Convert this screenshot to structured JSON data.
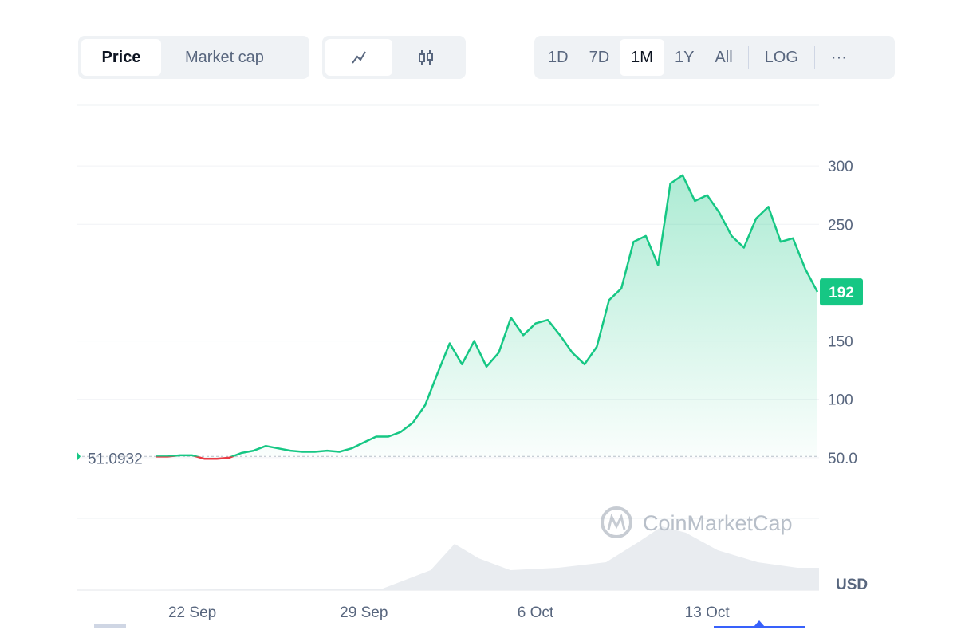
{
  "toolbar": {
    "tabs": [
      "Price",
      "Market cap"
    ],
    "ranges": [
      "1D",
      "7D",
      "1M",
      "1Y",
      "All"
    ],
    "scale": "LOG",
    "more": "···"
  },
  "watermark": "CoinMarketCap",
  "chart_data": {
    "type": "line",
    "currency": "USD",
    "categories": [
      null,
      null,
      null,
      "22 Sep",
      null,
      null,
      null,
      null,
      null,
      null,
      null,
      null,
      null,
      null,
      null,
      null,
      null,
      "29 Sep",
      null,
      null,
      null,
      null,
      null,
      null,
      null,
      null,
      null,
      null,
      null,
      null,
      null,
      "6 Oct",
      null,
      null,
      null,
      null,
      null,
      null,
      null,
      null,
      null,
      null,
      null,
      null,
      null,
      "13 Oct",
      null,
      null,
      null,
      null,
      null,
      null,
      null,
      null,
      null
    ],
    "series": [
      {
        "name": "Price",
        "color": "#16c784",
        "negative_color": "#ea3943",
        "values": [
          51,
          51,
          52,
          52,
          49,
          49,
          50,
          54,
          56,
          60,
          58,
          56,
          55,
          55,
          56,
          55,
          58,
          63,
          68,
          68,
          72,
          80,
          95,
          122,
          148,
          130,
          150,
          128,
          140,
          170,
          155,
          165,
          168,
          155,
          140,
          130,
          145,
          185,
          195,
          235,
          240,
          215,
          285,
          292,
          270,
          275,
          260,
          240,
          230,
          255,
          265,
          235,
          238,
          212,
          192
        ]
      }
    ],
    "reference": {
      "value": 51.0932,
      "label": "51.0932"
    },
    "ylim": [
      0,
      350
    ],
    "yticks": [
      {
        "value": 50,
        "label": "50.0"
      },
      100,
      150,
      250,
      300
    ],
    "grid": true
  }
}
